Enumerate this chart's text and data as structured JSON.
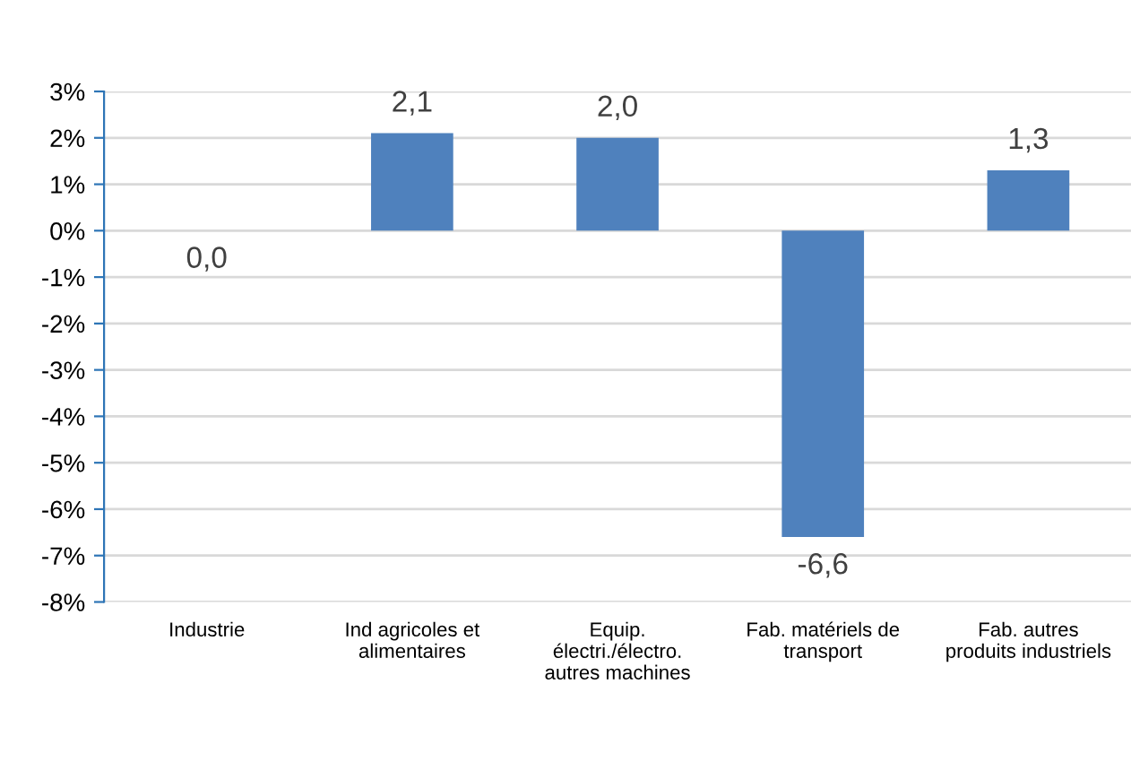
{
  "chart_data": {
    "type": "bar",
    "categories": [
      "Industrie",
      "Ind agricoles et\nalimentaires",
      "Equip.\nélectri./électro.\nautres machines",
      "Fab. matériels de\ntransport",
      "Fab. autres\nproduits industriels"
    ],
    "values": [
      0.0,
      2.1,
      2.0,
      -6.6,
      1.3
    ],
    "value_labels": [
      "0,0",
      "2,1",
      "2,0",
      "-6,6",
      "1,3"
    ],
    "color": "#4f81bd",
    "ylim": [
      -8,
      3
    ],
    "yticks": [
      {
        "value": 3,
        "label": "3%"
      },
      {
        "value": 2,
        "label": "2%"
      },
      {
        "value": 1,
        "label": "1%"
      },
      {
        "value": 0,
        "label": "0%"
      },
      {
        "value": -1,
        "label": "-1%"
      },
      {
        "value": -2,
        "label": "-2%"
      },
      {
        "value": -3,
        "label": "-3%"
      },
      {
        "value": -4,
        "label": "-4%"
      },
      {
        "value": -5,
        "label": "-5%"
      },
      {
        "value": -6,
        "label": "-6%"
      },
      {
        "value": -7,
        "label": "-7%"
      },
      {
        "value": -8,
        "label": "-8%"
      }
    ],
    "grid": "y"
  }
}
